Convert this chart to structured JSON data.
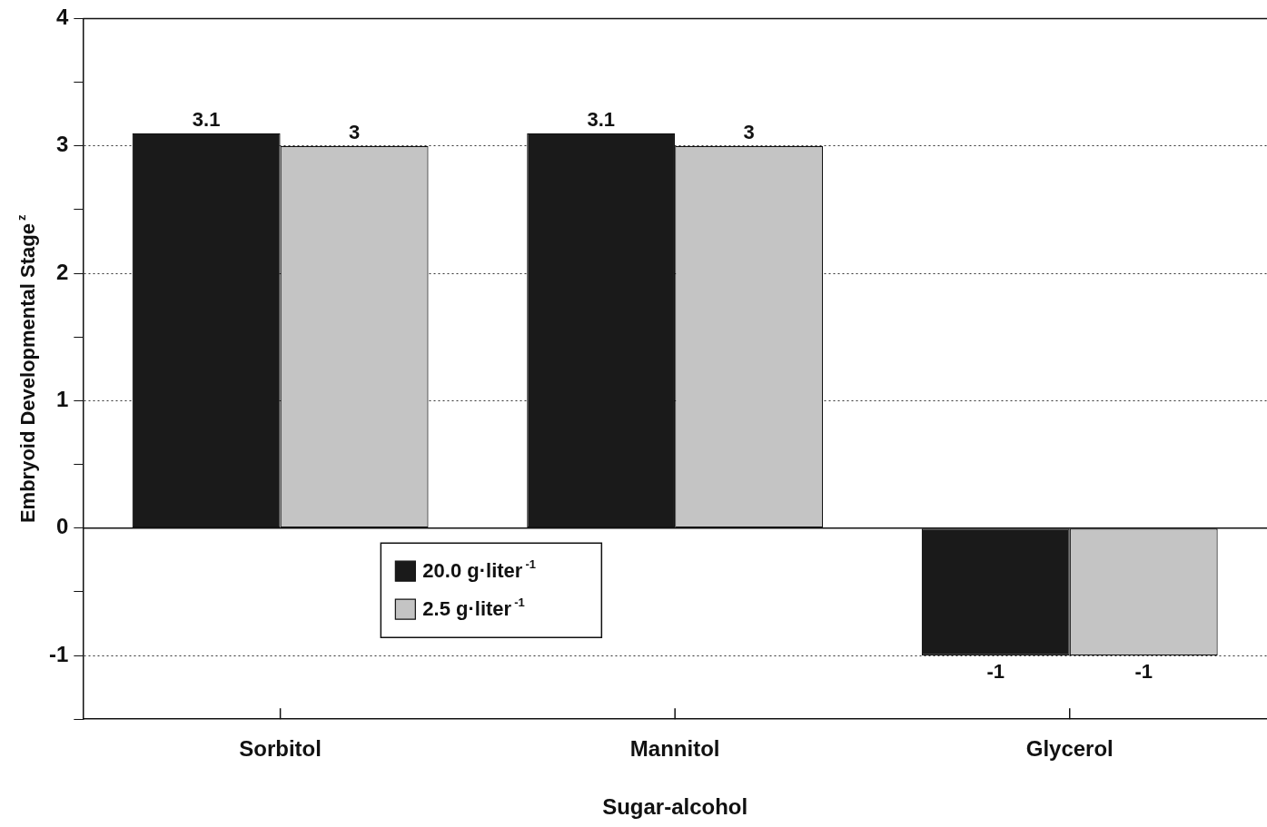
{
  "chart_data": {
    "type": "bar",
    "categories": [
      "Sorbitol",
      "Mannitol",
      "Glycerol"
    ],
    "xlabel": "Sugar-alcohol",
    "ylabel": "Embryoid Developmental Stage$^{z}$",
    "series": [
      {
        "name": "20.0 g·liter$^{-1}$",
        "color": "#1a1a1a",
        "values": [
          3.1,
          3.1,
          -1
        ]
      },
      {
        "name": "2.5 g·liter$^{-1}$",
        "color": "#c4c4c4",
        "values": [
          3,
          3,
          -1
        ]
      }
    ],
    "ylim": [
      -1.5,
      4
    ],
    "yticks": [
      {
        "value": -1.5,
        "label": null
      },
      -1,
      {
        "value": -0.5,
        "label": null
      },
      0,
      {
        "value": 0.5,
        "label": null
      },
      1,
      {
        "value": 1.5,
        "label": null
      },
      2,
      {
        "value": 2.5,
        "label": null
      },
      3,
      {
        "value": 3.5,
        "label": null
      },
      4
    ],
    "grid": "y",
    "legend": "bottom left",
    "data_labels": true
  }
}
